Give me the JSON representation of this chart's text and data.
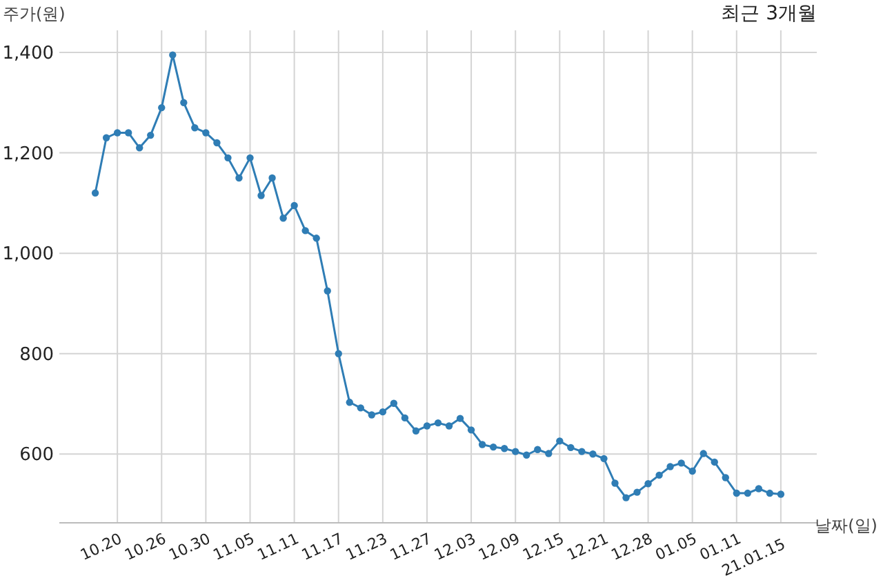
{
  "chart_data": {
    "type": "line",
    "title": "최근 3개월",
    "xlabel": "날짜(일)",
    "ylabel": "주가(원)",
    "categories": [
      null,
      null,
      "10.20",
      null,
      null,
      null,
      "10.26",
      null,
      null,
      null,
      "10.30",
      null,
      null,
      null,
      "11.05",
      null,
      null,
      null,
      "11.11",
      null,
      null,
      null,
      "11.17",
      null,
      null,
      null,
      "11.23",
      null,
      null,
      null,
      "11.27",
      null,
      null,
      null,
      "12.03",
      null,
      null,
      null,
      "12.09",
      null,
      null,
      null,
      "12.15",
      null,
      null,
      null,
      "12.21",
      null,
      null,
      null,
      "12.28",
      null,
      null,
      null,
      "01.05",
      null,
      null,
      null,
      "01.11",
      null,
      null,
      null,
      "21.01.15"
    ],
    "series": [
      {
        "color": "#2f7db5",
        "values": [
          1120,
          1230,
          1240,
          1240,
          1210,
          1235,
          1290,
          1395,
          1300,
          1250,
          1240,
          1220,
          1190,
          1150,
          1190,
          1115,
          1150,
          1070,
          1095,
          1045,
          1030,
          925,
          800,
          703,
          692,
          678,
          684,
          701,
          672,
          646,
          656,
          662,
          656,
          671,
          648,
          619,
          614,
          611,
          605,
          598,
          609,
          601,
          626,
          613,
          605,
          600,
          591,
          542,
          513,
          524,
          541,
          558,
          575,
          582,
          566,
          601,
          584,
          553,
          522,
          522,
          531,
          522,
          520
        ]
      }
    ],
    "ylim": [
      463,
      1444
    ],
    "yticks": [
      {
        "value": 600,
        "label": "600"
      },
      {
        "value": 800,
        "label": "800"
      },
      {
        "value": 1000,
        "label": "1,000"
      },
      {
        "value": 1200,
        "label": "1,200"
      },
      {
        "value": 1400,
        "label": "1,400"
      }
    ],
    "grid": true,
    "marker": "circle",
    "line_style": "solid"
  }
}
